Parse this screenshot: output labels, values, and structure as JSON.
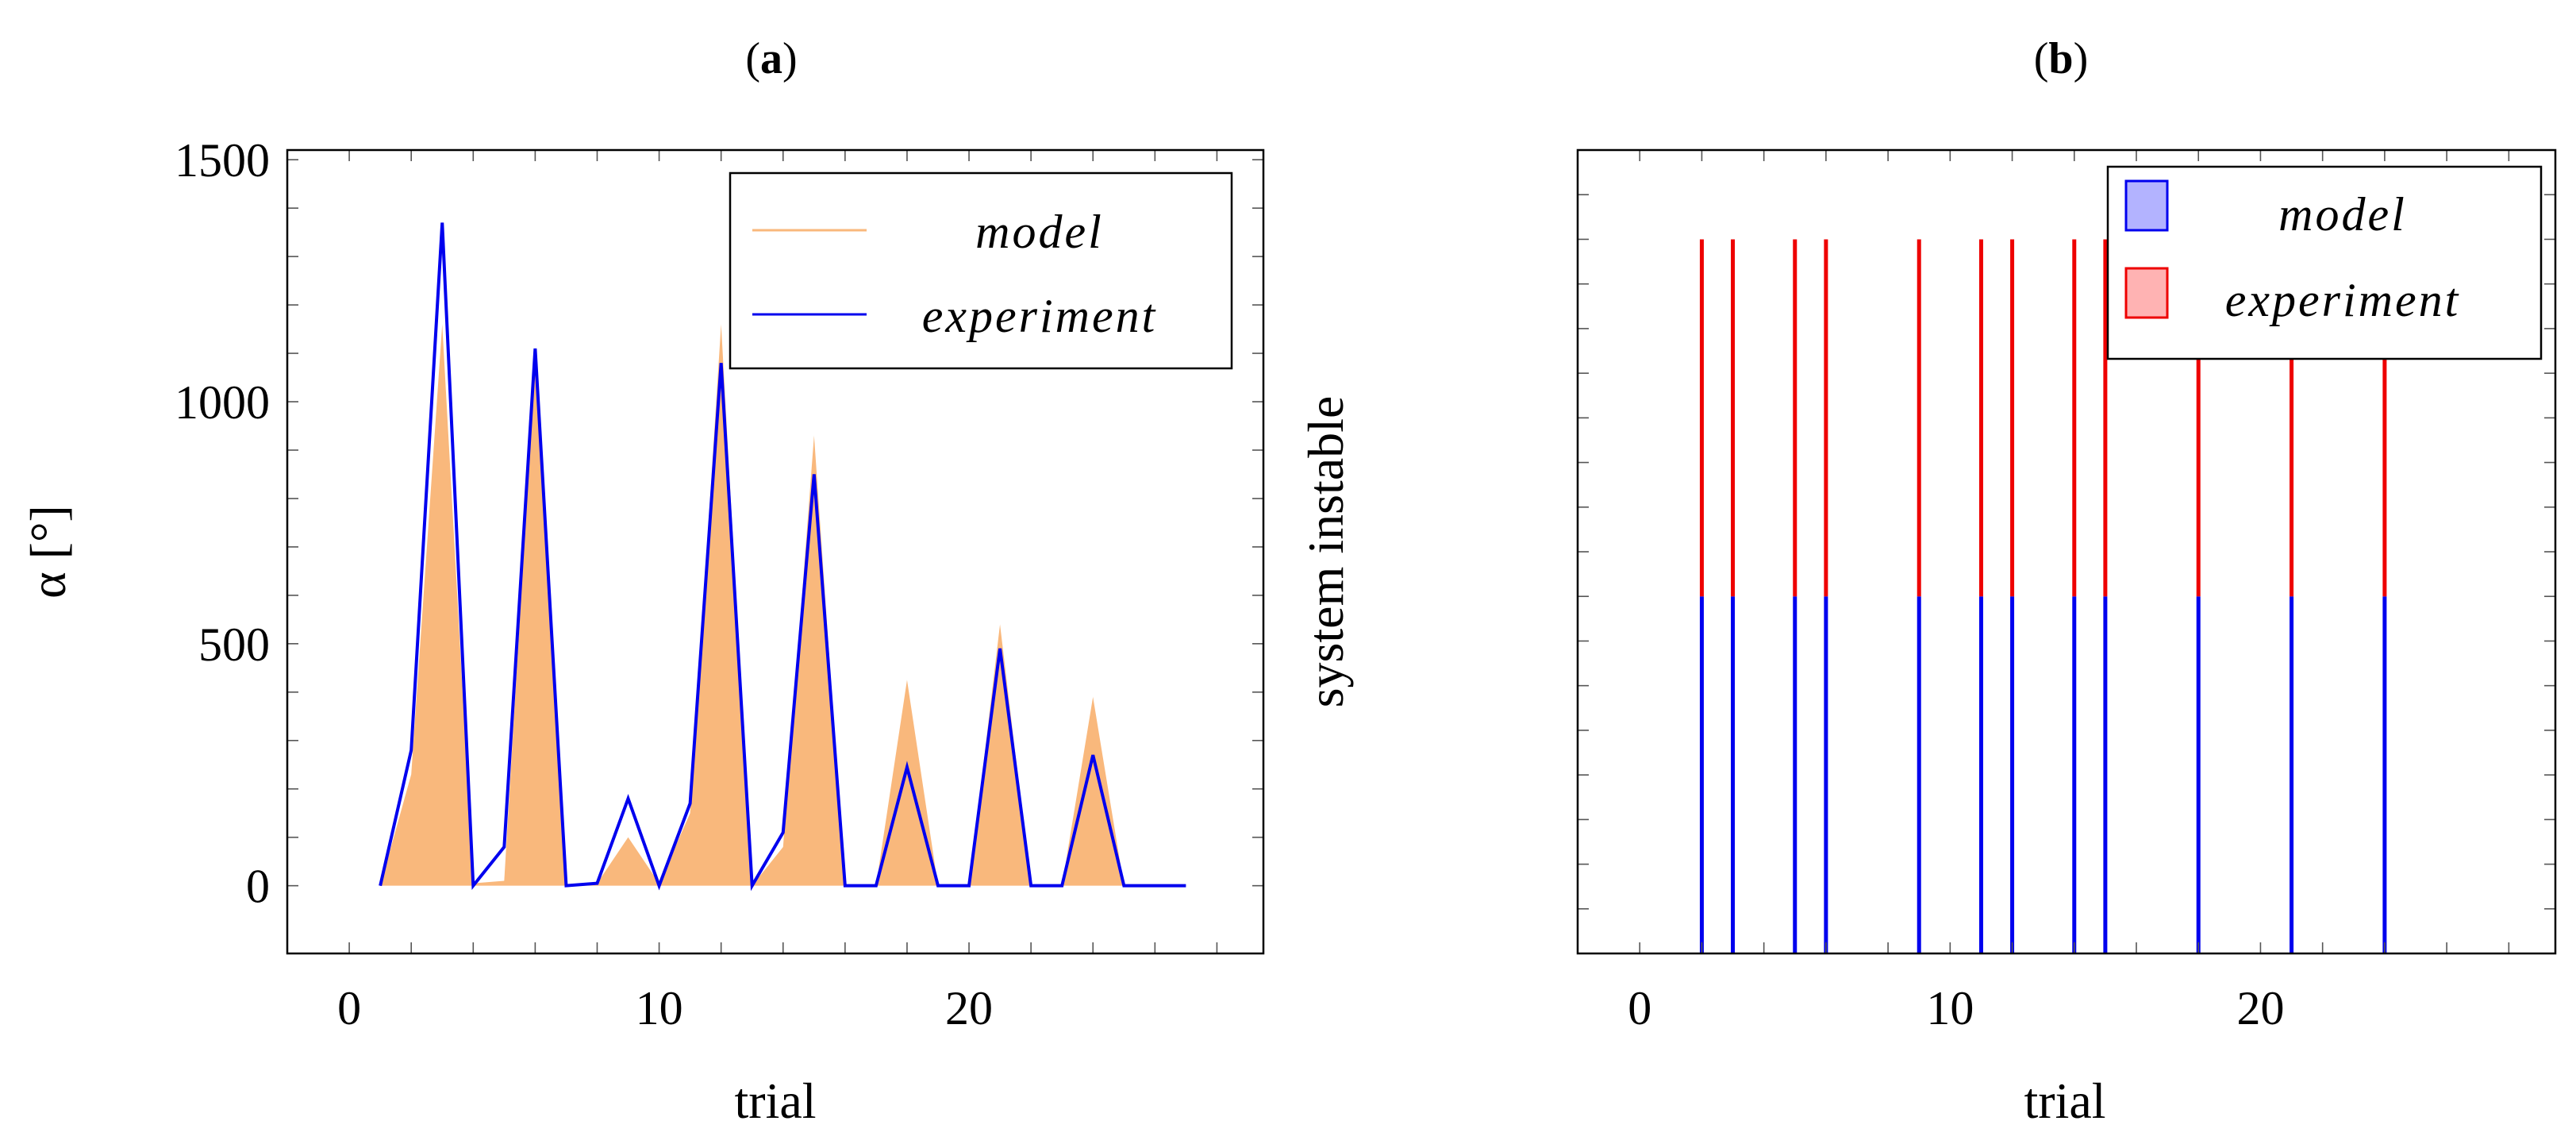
{
  "chart_data": [
    {
      "type": "area",
      "panel_label": "a",
      "xlabel": "trial",
      "ylabel": "α [°]",
      "xlim": [
        -2,
        29.5
      ],
      "ylim": [
        -140,
        1520
      ],
      "xticks": [
        0,
        10,
        20
      ],
      "yticks": [
        0,
        500,
        1000,
        1500
      ],
      "legend_position": "top-right",
      "series": [
        {
          "name": "model",
          "style": "filled-area",
          "color": "#f9b87c",
          "x": [
            1,
            2,
            3,
            4,
            5,
            6,
            7,
            8,
            9,
            10,
            11,
            12,
            13,
            14,
            15,
            16,
            17,
            18,
            19,
            20,
            21,
            22,
            23,
            24,
            25,
            26,
            27
          ],
          "values": [
            0,
            230,
            1160,
            5,
            10,
            1080,
            0,
            5,
            100,
            5,
            150,
            1160,
            0,
            80,
            930,
            0,
            0,
            425,
            0,
            0,
            540,
            0,
            0,
            390,
            0,
            0,
            0
          ]
        },
        {
          "name": "experiment",
          "style": "line",
          "color": "#0000ee",
          "x": [
            1,
            2,
            3,
            4,
            5,
            6,
            7,
            8,
            9,
            10,
            11,
            12,
            13,
            14,
            15,
            16,
            17,
            18,
            19,
            20,
            21,
            22,
            23,
            24,
            25,
            26,
            27
          ],
          "values": [
            0,
            280,
            1370,
            0,
            80,
            1110,
            0,
            5,
            180,
            0,
            170,
            1080,
            0,
            110,
            850,
            0,
            0,
            245,
            0,
            0,
            490,
            0,
            0,
            270,
            0,
            0,
            0
          ]
        }
      ]
    },
    {
      "type": "bar",
      "panel_label": "b",
      "xlabel": "trial",
      "ylabel": "system instable",
      "xlim": [
        -2,
        29.5
      ],
      "ylim": [
        0,
        2.25
      ],
      "xticks": [
        0,
        10,
        20
      ],
      "legend_position": "top-right",
      "stacked": true,
      "categories": [
        2,
        3,
        5,
        6,
        9,
        11,
        12,
        14,
        15,
        18,
        21,
        24
      ],
      "series": [
        {
          "name": "model",
          "color": "#0000ee",
          "legend_fill": "#b3b3ff",
          "values": [
            1,
            1,
            1,
            1,
            1,
            1,
            1,
            1,
            1,
            1,
            1,
            1
          ]
        },
        {
          "name": "experiment",
          "color": "#ee0000",
          "legend_fill": "#ffb3b3",
          "values": [
            1,
            1,
            1,
            1,
            1,
            1,
            1,
            1,
            1,
            1,
            1,
            1
          ]
        }
      ]
    }
  ]
}
